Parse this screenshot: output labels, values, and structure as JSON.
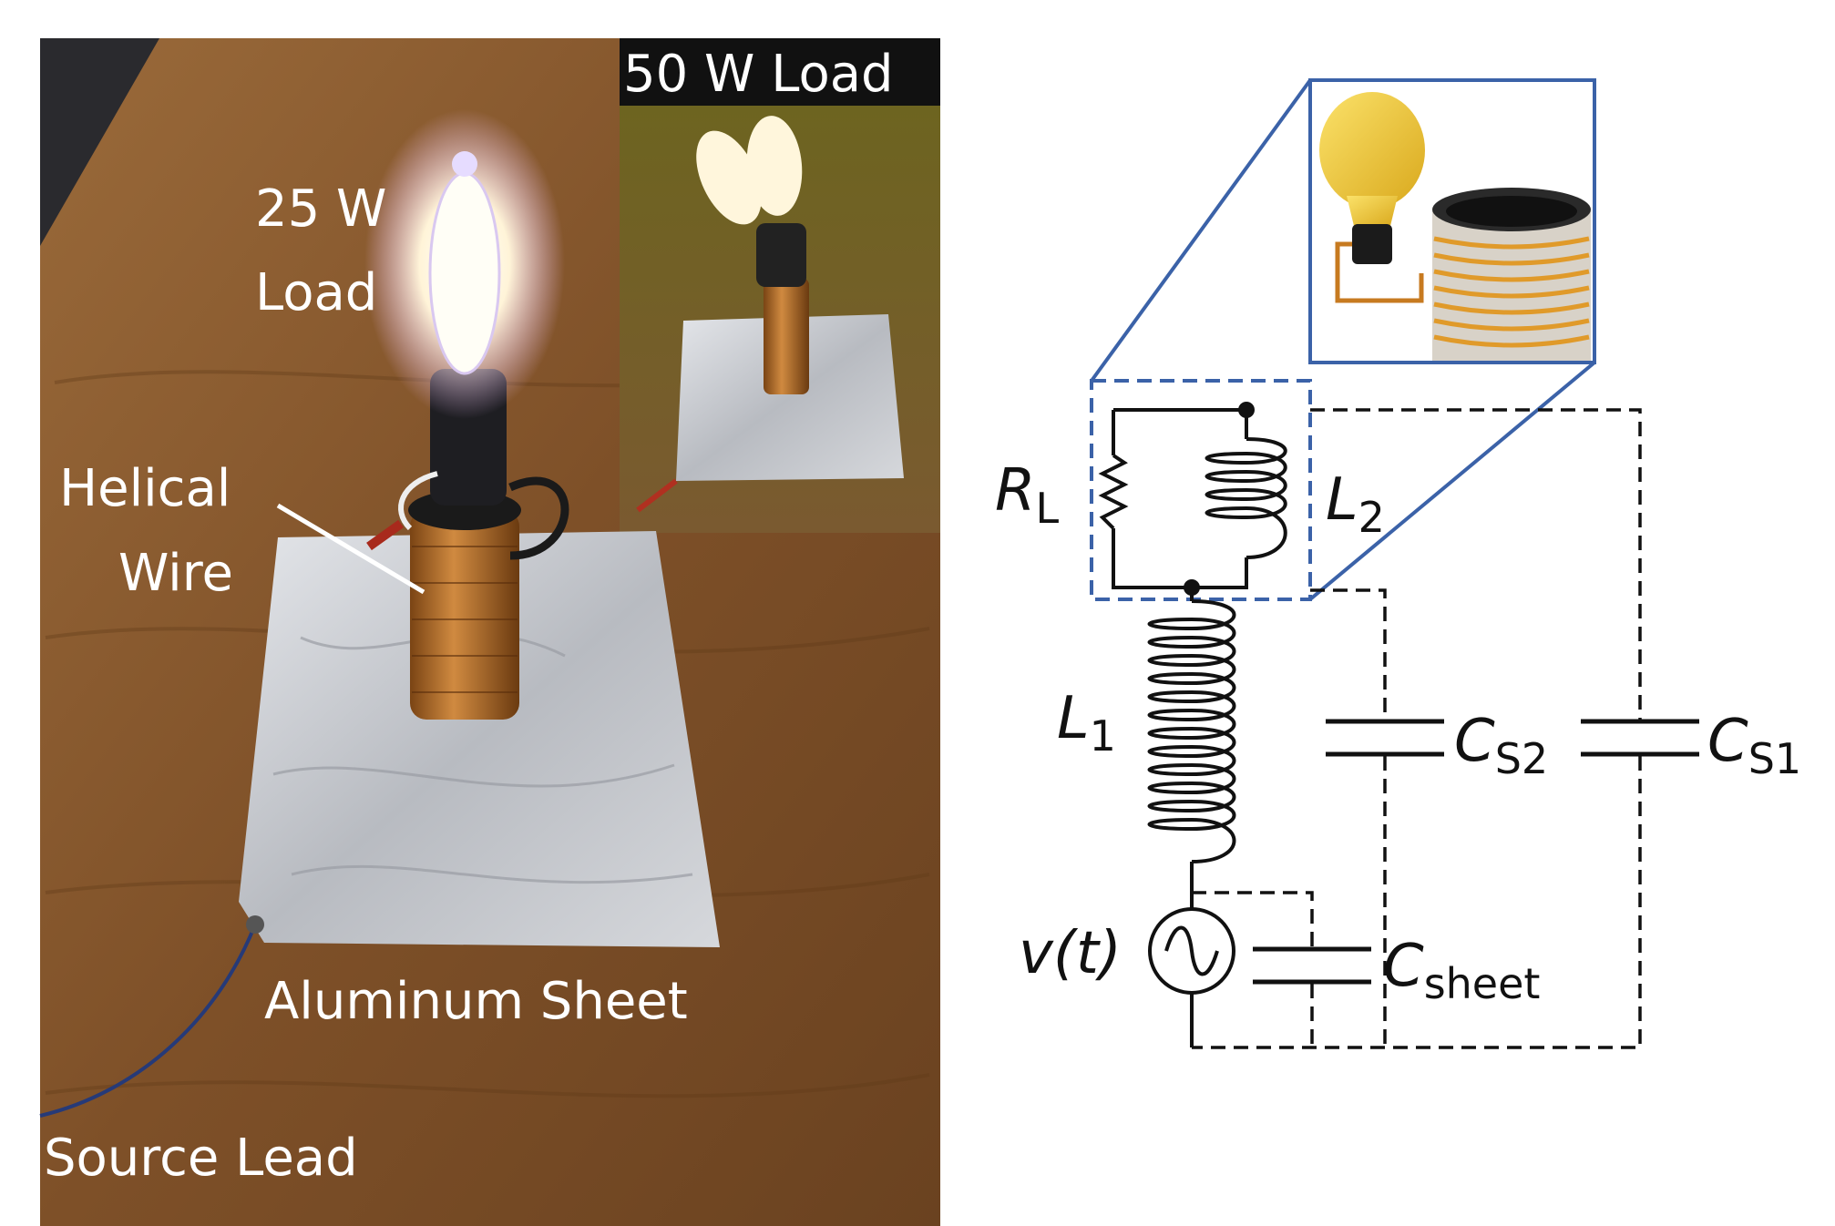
{
  "photo": {
    "labels": {
      "load_25w_line1": "25 W",
      "load_25w_line2": "Load",
      "load_50w": "50 W Load",
      "helical_line1": "Helical",
      "helical_line2": "Wire",
      "aluminum": "Aluminum Sheet",
      "source_lead": "Source Lead"
    }
  },
  "circuit": {
    "RL": {
      "main": "R",
      "sub": "L"
    },
    "L2": {
      "main": "L",
      "sub": "2"
    },
    "L1": {
      "main": "L",
      "sub": "1"
    },
    "CS2": {
      "main": "C",
      "sub": "S2"
    },
    "CS1": {
      "main": "C",
      "sub": "S1"
    },
    "vt": "v(t)",
    "Csheet": {
      "main": "C",
      "sub": "sheet"
    }
  },
  "colors": {
    "table": "#8a5a2e",
    "foil": "#c9cbcf",
    "copper": "#b8702c",
    "bulb": "#f2c93a",
    "zoom_border": "#3b62a8",
    "wire": "#111111"
  }
}
